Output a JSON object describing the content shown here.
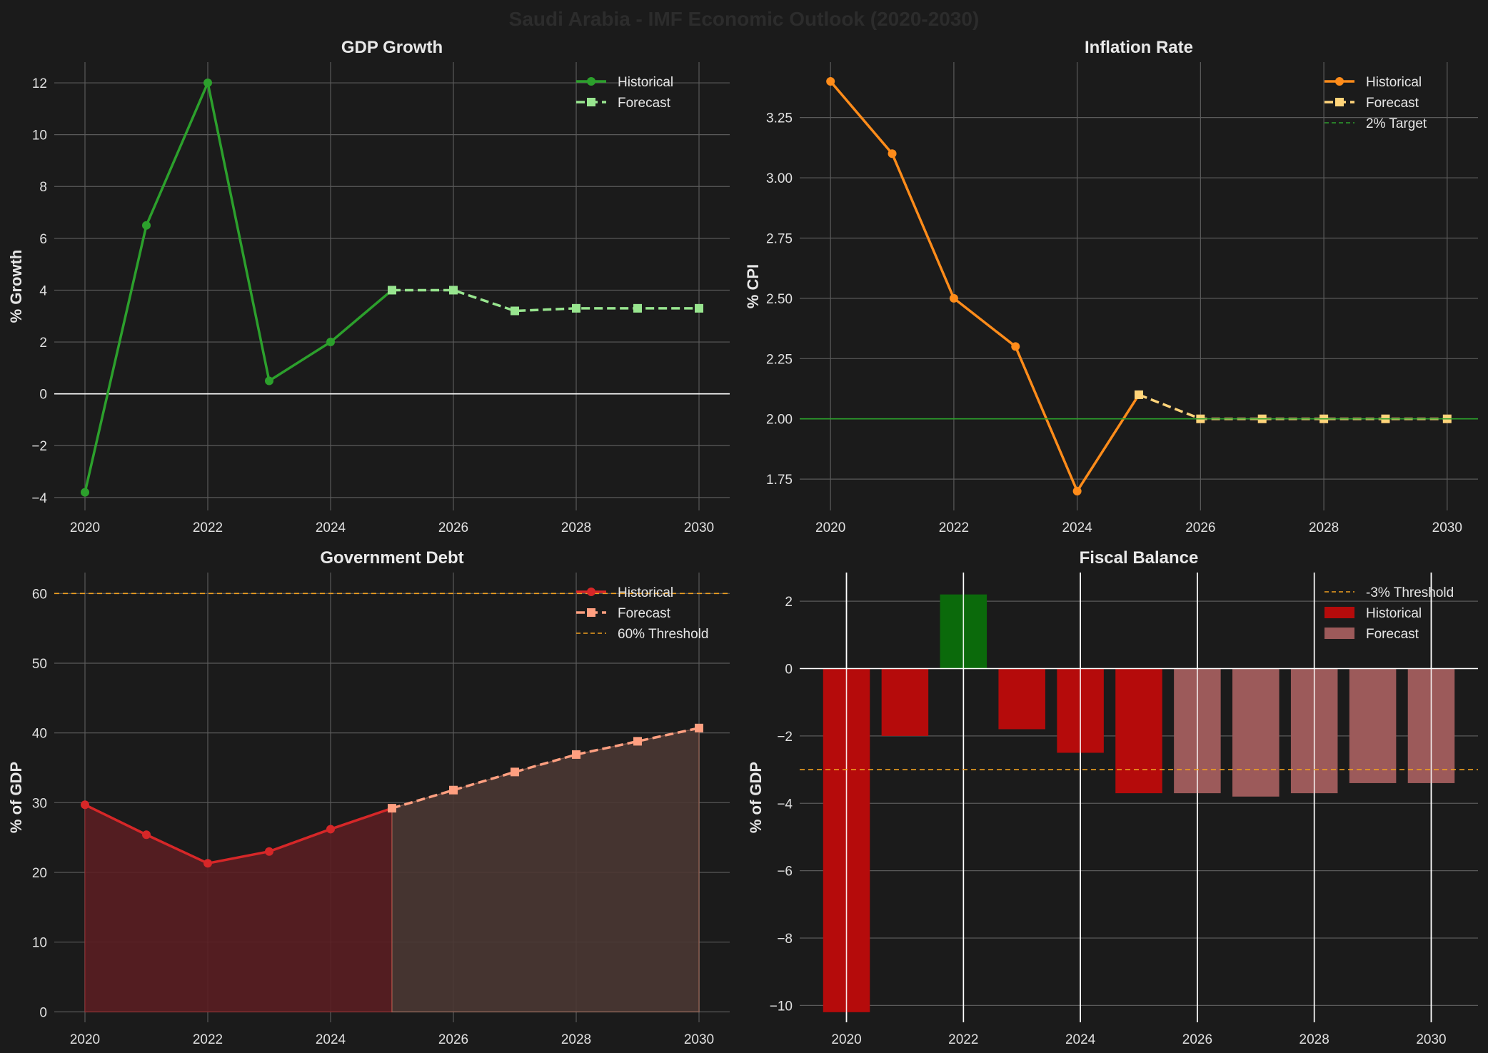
{
  "figure": {
    "title": "Saudi Arabia - IMF Economic Outlook (2020-2030)",
    "background": "#1b1b1b",
    "grid_color": "#5a5a5a"
  },
  "chart_data": [
    {
      "id": "gdp",
      "type": "line",
      "title": "GDP Growth",
      "ylabel": "% Growth",
      "xlabel": "",
      "xlim": [
        2019.5,
        2030.5
      ],
      "ylim": [
        -4.5,
        12.8
      ],
      "xticks": [
        2020,
        2022,
        2024,
        2026,
        2028,
        2030
      ],
      "yticks": [
        -4,
        -2,
        0,
        2,
        4,
        6,
        8,
        10,
        12
      ],
      "ytick_labels": [
        "−4",
        "−2",
        "0",
        "2",
        "4",
        "6",
        "8",
        "10",
        "12"
      ],
      "zero_line": true,
      "series": [
        {
          "name": "Historical",
          "style": "solid",
          "marker": "circle",
          "color": "#2ca02c",
          "x": [
            2020,
            2021,
            2022,
            2023,
            2024,
            2025
          ],
          "y": [
            -3.8,
            6.5,
            12.0,
            0.5,
            2.0,
            4.0
          ]
        },
        {
          "name": "Forecast",
          "style": "dashed",
          "marker": "square",
          "color": "#98e58f",
          "x": [
            2025,
            2026,
            2027,
            2028,
            2029,
            2030
          ],
          "y": [
            4.0,
            4.0,
            3.2,
            3.3,
            3.3,
            3.3
          ]
        }
      ],
      "legend": {
        "position": "top-right",
        "entries": [
          "Historical",
          "Forecast"
        ]
      }
    },
    {
      "id": "inflation",
      "type": "line",
      "title": "Inflation Rate",
      "ylabel": "% CPI",
      "xlabel": "",
      "xlim": [
        2019.5,
        2030.5
      ],
      "ylim": [
        1.62,
        3.48
      ],
      "xticks": [
        2020,
        2022,
        2024,
        2026,
        2028,
        2030
      ],
      "yticks": [
        1.75,
        2.0,
        2.25,
        2.5,
        2.75,
        3.0,
        3.25
      ],
      "ytick_labels": [
        "1.75",
        "2.00",
        "2.25",
        "2.50",
        "2.75",
        "3.00",
        "3.25"
      ],
      "series": [
        {
          "name": "Historical",
          "style": "solid",
          "marker": "circle",
          "color": "#ff8c1a",
          "x": [
            2020,
            2021,
            2022,
            2023,
            2024,
            2025
          ],
          "y": [
            3.4,
            3.1,
            2.5,
            2.3,
            1.7,
            2.1
          ]
        },
        {
          "name": "Forecast",
          "style": "dashed",
          "marker": "square",
          "color": "#ffd47a",
          "x": [
            2025,
            2026,
            2027,
            2028,
            2029,
            2030
          ],
          "y": [
            2.1,
            2.0,
            2.0,
            2.0,
            2.0,
            2.0
          ]
        }
      ],
      "reference_line": {
        "name": "2% Target",
        "value": 2.0,
        "color": "#2ca02c",
        "style": "dashed"
      },
      "legend": {
        "position": "top-right",
        "entries": [
          "Historical",
          "Forecast",
          "2% Target"
        ]
      }
    },
    {
      "id": "debt",
      "type": "area",
      "title": "Government Debt",
      "ylabel": "% of GDP",
      "xlabel": "",
      "xlim": [
        2019.5,
        2030.5
      ],
      "ylim": [
        -1.5,
        63.0
      ],
      "xticks": [
        2020,
        2022,
        2024,
        2026,
        2028,
        2030
      ],
      "yticks": [
        0,
        10,
        20,
        30,
        40,
        50,
        60
      ],
      "ytick_labels": [
        "0",
        "10",
        "20",
        "30",
        "40",
        "50",
        "60"
      ],
      "series": [
        {
          "name": "Historical",
          "style": "solid",
          "marker": "circle",
          "color": "#d62728",
          "fill": "#5a1e22",
          "x": [
            2020,
            2021,
            2022,
            2023,
            2024,
            2025
          ],
          "y": [
            29.7,
            25.4,
            21.3,
            23.0,
            26.2,
            29.2
          ]
        },
        {
          "name": "Forecast",
          "style": "dashed",
          "marker": "square",
          "color": "#ff9f80",
          "fill": "#4a3733",
          "x": [
            2025,
            2026,
            2027,
            2028,
            2029,
            2030
          ],
          "y": [
            29.2,
            31.8,
            34.4,
            36.9,
            38.8,
            40.7
          ]
        }
      ],
      "reference_line": {
        "name": "60% Threshold",
        "value": 60,
        "color": "#f0a020",
        "style": "dashed"
      },
      "legend": {
        "position": "top-right",
        "entries": [
          "Historical",
          "Forecast",
          "60% Threshold"
        ]
      }
    },
    {
      "id": "fiscal",
      "type": "bar",
      "title": "Fiscal Balance",
      "ylabel": "% of GDP",
      "xlabel": "",
      "xlim": [
        2019.2,
        2030.8
      ],
      "ylim": [
        -10.5,
        2.85
      ],
      "xticks": [
        2020,
        2022,
        2024,
        2026,
        2028,
        2030
      ],
      "yticks": [
        -10,
        -8,
        -6,
        -4,
        -2,
        0,
        2
      ],
      "ytick_labels": [
        "−10",
        "−8",
        "−6",
        "−4",
        "−2",
        "0",
        "2"
      ],
      "categories": [
        2020,
        2021,
        2022,
        2023,
        2024,
        2025,
        2026,
        2027,
        2028,
        2029,
        2030
      ],
      "values": [
        -10.2,
        -2.0,
        2.2,
        -1.8,
        -2.5,
        -3.7,
        -3.7,
        -3.8,
        -3.7,
        -3.4,
        -3.4
      ],
      "period": [
        "Historical",
        "Historical",
        "Historical",
        "Historical",
        "Historical",
        "Historical",
        "Forecast",
        "Forecast",
        "Forecast",
        "Forecast",
        "Forecast"
      ],
      "colors": {
        "historical_negative": "#b50b0b",
        "historical_positive": "#0b6a0b",
        "forecast": "#9c5a5a"
      },
      "reference_line": {
        "name": "-3% Threshold",
        "value": -3,
        "color": "#f0a020",
        "style": "dashed"
      },
      "legend": {
        "position": "top-right",
        "entries": [
          "-3% Threshold",
          "Historical",
          "Forecast"
        ]
      }
    }
  ]
}
